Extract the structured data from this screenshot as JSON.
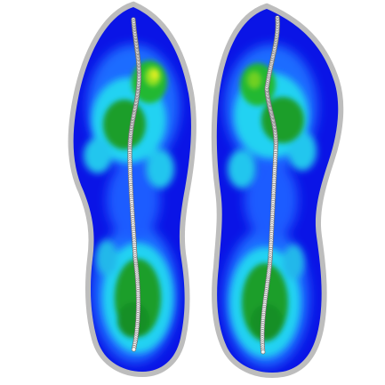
{
  "scene": {
    "description_colors": {
      "outline": "#b3b3b3",
      "low": "#0a14e6",
      "mid": "#1e6cff",
      "cyan": "#22d2f2",
      "high": "#1a9e2a",
      "peak": "#cfe81c",
      "trace": "#8a8a8a"
    },
    "feet": [
      {
        "name": "left-foot"
      },
      {
        "name": "right-foot"
      }
    ]
  }
}
